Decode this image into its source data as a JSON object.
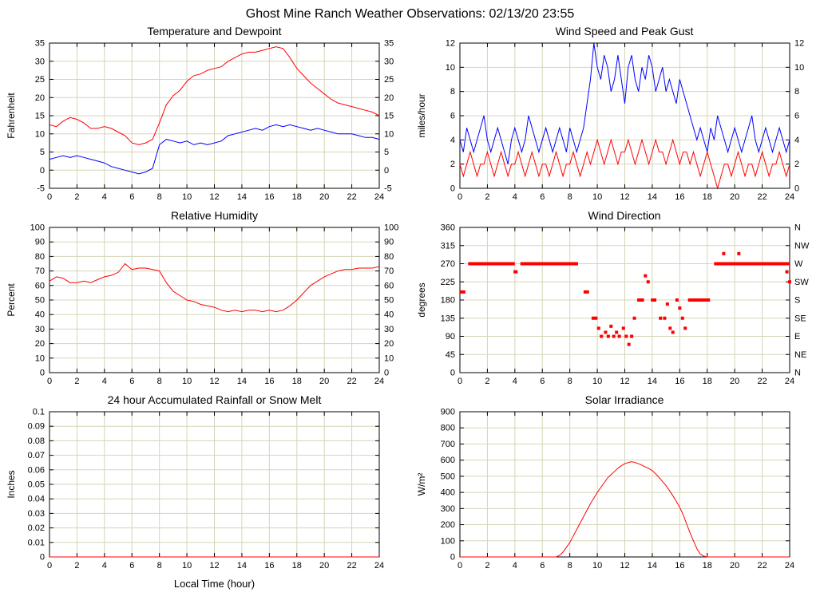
{
  "title": "Ghost Mine Ranch Weather Observations: 02/13/20 23:55",
  "colors": {
    "red": "#ff0000",
    "blue": "#0000ff",
    "frame": "#000000"
  },
  "chart_common": {
    "xmin": 0,
    "xmax": 24,
    "xticks": [
      0,
      2,
      4,
      6,
      8,
      10,
      12,
      14,
      16,
      18,
      20,
      22,
      24
    ],
    "grid_color": "#d5d5b8"
  },
  "chart_data": [
    {
      "type": "line",
      "title": "Temperature and Dewpoint",
      "ylabel": "Fahrenheit",
      "ymin": -5,
      "ymax": 35,
      "mirror": true,
      "margins": {
        "l": 58,
        "r": 34,
        "t": 6,
        "b": 24
      },
      "yticks": [
        [
          -5,
          "-5"
        ],
        [
          0,
          "0"
        ],
        [
          5,
          "5"
        ],
        [
          10,
          "10"
        ],
        [
          15,
          "15"
        ],
        [
          20,
          "20"
        ],
        [
          25,
          "25"
        ],
        [
          30,
          "30"
        ],
        [
          35,
          "35"
        ]
      ],
      "series": [
        {
          "name": "temperature",
          "color": "#ff0000",
          "x0": 0,
          "dx": 0.5,
          "y": [
            12.5,
            12,
            13.5,
            14.5,
            14,
            13,
            11.5,
            11.5,
            12,
            11.5,
            10.5,
            9.5,
            7.5,
            7,
            7.5,
            8.5,
            13,
            18,
            20.5,
            22,
            24.5,
            26,
            26.5,
            27.5,
            28,
            28.5,
            30,
            31,
            32,
            32.5,
            32.5,
            33,
            33.5,
            34,
            33.5,
            31,
            28,
            26,
            24,
            22.5,
            21,
            19.5,
            18.5,
            18,
            17.5,
            17,
            16.5,
            16,
            15
          ]
        },
        {
          "name": "dewpoint",
          "color": "#0000ff",
          "x0": 0,
          "dx": 0.5,
          "y": [
            3,
            3.5,
            4,
            3.5,
            4,
            3.5,
            3,
            2.5,
            2,
            1,
            0.5,
            0,
            -0.5,
            -1,
            -0.5,
            0.5,
            7,
            8.5,
            8,
            7.5,
            8,
            7,
            7.5,
            7,
            7.5,
            8,
            9.5,
            10,
            10.5,
            11,
            11.5,
            11,
            12,
            12.5,
            12,
            12.5,
            12,
            11.5,
            11,
            11.5,
            11,
            10.5,
            10,
            10,
            10,
            9.5,
            9,
            9,
            8.5
          ]
        }
      ]
    },
    {
      "type": "line",
      "title": "Wind Speed and Peak Gust",
      "ylabel": "miles/hour",
      "ymin": 0,
      "ymax": 12,
      "mirror": true,
      "margins": {
        "l": 58,
        "r": 34,
        "t": 6,
        "b": 24
      },
      "yticks": [
        [
          0,
          "0"
        ],
        [
          2,
          "2"
        ],
        [
          4,
          "4"
        ],
        [
          6,
          "6"
        ],
        [
          8,
          "8"
        ],
        [
          10,
          "10"
        ],
        [
          12,
          "12"
        ]
      ],
      "series": [
        {
          "name": "peak-gust",
          "color": "#0000ff",
          "x0": 0,
          "dx": 0.25,
          "y": [
            4,
            3,
            5,
            4,
            3,
            4,
            5,
            6,
            4,
            3,
            4,
            5,
            4,
            3,
            2,
            4,
            5,
            4,
            3,
            4,
            6,
            5,
            4,
            3,
            4,
            5,
            4,
            3,
            4,
            5,
            4,
            3,
            5,
            4,
            3,
            4,
            5,
            7,
            9,
            12,
            10,
            9,
            11,
            10,
            8,
            9,
            11,
            9,
            7,
            10,
            11,
            9,
            8,
            10,
            9,
            11,
            10,
            8,
            9,
            10,
            8,
            9,
            8,
            7,
            9,
            8,
            7,
            6,
            5,
            4,
            5,
            4,
            3,
            5,
            4,
            6,
            5,
            4,
            3,
            4,
            5,
            4,
            3,
            4,
            5,
            6,
            4,
            3,
            4,
            5,
            4,
            3,
            4,
            5,
            4,
            3,
            4
          ]
        },
        {
          "name": "wind-speed",
          "color": "#ff0000",
          "x0": 0,
          "dx": 0.25,
          "y": [
            2,
            1,
            2,
            3,
            2,
            1,
            2,
            2,
            3,
            2,
            1,
            2,
            3,
            2,
            1,
            2,
            2,
            3,
            2,
            1,
            2,
            3,
            2,
            1,
            2,
            2,
            1,
            2,
            3,
            2,
            1,
            2,
            2,
            3,
            2,
            1,
            2,
            3,
            2,
            3,
            4,
            3,
            2,
            3,
            4,
            3,
            2,
            3,
            3,
            4,
            3,
            2,
            3,
            4,
            3,
            2,
            3,
            4,
            3,
            3,
            2,
            3,
            4,
            3,
            2,
            3,
            3,
            2,
            3,
            2,
            1,
            2,
            3,
            2,
            1,
            0,
            1,
            2,
            2,
            1,
            2,
            3,
            2,
            1,
            2,
            2,
            1,
            2,
            3,
            2,
            1,
            2,
            2,
            3,
            2,
            1,
            2
          ]
        }
      ]
    },
    {
      "type": "line",
      "title": "Relative Humidity",
      "ylabel": "Percent",
      "ymin": 0,
      "ymax": 100,
      "mirror": true,
      "margins": {
        "l": 58,
        "r": 34,
        "t": 6,
        "b": 24
      },
      "yticks": [
        [
          0,
          "0"
        ],
        [
          10,
          "10"
        ],
        [
          20,
          "20"
        ],
        [
          30,
          "30"
        ],
        [
          40,
          "40"
        ],
        [
          50,
          "50"
        ],
        [
          60,
          "60"
        ],
        [
          70,
          "70"
        ],
        [
          80,
          "80"
        ],
        [
          90,
          "90"
        ],
        [
          100,
          "100"
        ]
      ],
      "series": [
        {
          "name": "relative-humidity",
          "color": "#ff0000",
          "x0": 0,
          "dx": 0.5,
          "y": [
            63,
            66,
            65,
            62,
            62,
            63,
            62,
            64,
            66,
            67,
            69,
            75,
            71,
            72,
            72,
            71,
            70,
            62,
            56,
            53,
            50,
            49,
            47,
            46,
            45,
            43,
            42,
            43,
            42,
            43,
            43,
            42,
            43,
            42,
            43,
            46,
            50,
            55,
            60,
            63,
            66,
            68,
            70,
            71,
            71,
            72,
            72,
            72,
            73
          ]
        }
      ]
    },
    {
      "type": "scatter",
      "title": "Wind Direction",
      "ylabel": "degrees",
      "ymin": 0,
      "ymax": 360,
      "mirror": false,
      "margins": {
        "l": 58,
        "r": 34,
        "t": 6,
        "b": 24
      },
      "yticks": [
        [
          0,
          "0"
        ],
        [
          45,
          "45"
        ],
        [
          90,
          "90"
        ],
        [
          135,
          "135"
        ],
        [
          180,
          "180"
        ],
        [
          225,
          "225"
        ],
        [
          270,
          "270"
        ],
        [
          315,
          "315"
        ],
        [
          360,
          "360"
        ]
      ],
      "right_labels": [
        "N",
        "NE",
        "E",
        "SE",
        "S",
        "SW",
        "W",
        "NW",
        "N"
      ],
      "mark_color": "#ff0000",
      "runs": [
        [
          0.0,
          0.4,
          200
        ],
        [
          0.6,
          4.0,
          270
        ],
        [
          3.9,
          4.2,
          250
        ],
        [
          4.4,
          8.6,
          270
        ],
        [
          9.0,
          9.4,
          200
        ],
        [
          12.9,
          13.4,
          180
        ],
        [
          13.9,
          14.3,
          180
        ],
        [
          16.6,
          18.2,
          180
        ],
        [
          18.5,
          24,
          270
        ]
      ],
      "dots": [
        [
          9.7,
          135
        ],
        [
          9.9,
          135
        ],
        [
          10.1,
          110
        ],
        [
          10.3,
          90
        ],
        [
          10.6,
          100
        ],
        [
          10.8,
          90
        ],
        [
          11.0,
          115
        ],
        [
          11.2,
          90
        ],
        [
          11.4,
          100
        ],
        [
          11.6,
          90
        ],
        [
          11.9,
          110
        ],
        [
          12.1,
          90
        ],
        [
          12.3,
          70
        ],
        [
          12.5,
          90
        ],
        [
          12.7,
          135
        ],
        [
          13.5,
          240
        ],
        [
          13.7,
          225
        ],
        [
          14.6,
          135
        ],
        [
          14.9,
          135
        ],
        [
          15.1,
          170
        ],
        [
          15.3,
          110
        ],
        [
          15.5,
          100
        ],
        [
          15.8,
          180
        ],
        [
          16.0,
          160
        ],
        [
          16.2,
          135
        ],
        [
          16.4,
          110
        ],
        [
          19.2,
          295
        ],
        [
          20.3,
          295
        ],
        [
          23.8,
          250
        ],
        [
          24,
          225
        ]
      ]
    },
    {
      "type": "line",
      "title": "24 hour Accumulated Rainfall or Snow Melt",
      "ylabel": "Inches",
      "xlabel": "Local Time (hour)",
      "ymin": 0,
      "ymax": 0.1,
      "mirror": false,
      "margins": {
        "l": 58,
        "r": 34,
        "t": 6,
        "b": 44
      },
      "yticks": [
        [
          0,
          "0"
        ],
        [
          0.01,
          "0.01"
        ],
        [
          0.02,
          "0.02"
        ],
        [
          0.03,
          "0.03"
        ],
        [
          0.04,
          "0.04"
        ],
        [
          0.05,
          "0.05"
        ],
        [
          0.06,
          "0.06"
        ],
        [
          0.07,
          "0.07"
        ],
        [
          0.08,
          "0.08"
        ],
        [
          0.09,
          "0.09"
        ],
        [
          0.1,
          "0.1"
        ]
      ],
      "series": [
        {
          "name": "accumulated-rainfall",
          "color": "#ff0000",
          "x0": 0,
          "dx": 24,
          "y": [
            0,
            0
          ]
        }
      ]
    },
    {
      "type": "line",
      "title": "Solar Irradiance",
      "ylabel": "W/m²",
      "ymin": 0,
      "ymax": 900,
      "mirror": false,
      "margins": {
        "l": 58,
        "r": 34,
        "t": 6,
        "b": 24
      },
      "yticks": [
        [
          0,
          "0"
        ],
        [
          100,
          "100"
        ],
        [
          200,
          "200"
        ],
        [
          300,
          "300"
        ],
        [
          400,
          "400"
        ],
        [
          500,
          "500"
        ],
        [
          600,
          "600"
        ],
        [
          700,
          "700"
        ],
        [
          800,
          "800"
        ],
        [
          900,
          "900"
        ]
      ],
      "series": [
        {
          "name": "solar-irradiance",
          "color": "#ff0000",
          "x0": 0,
          "dx": 0.25,
          "y": [
            0,
            0,
            0,
            0,
            0,
            0,
            0,
            0,
            0,
            0,
            0,
            0,
            0,
            0,
            0,
            0,
            0,
            0,
            0,
            0,
            0,
            0,
            0,
            0,
            0,
            0,
            0,
            0,
            0,
            10,
            30,
            60,
            90,
            130,
            170,
            210,
            250,
            290,
            330,
            365,
            400,
            430,
            460,
            490,
            510,
            530,
            550,
            565,
            578,
            585,
            590,
            585,
            578,
            568,
            558,
            548,
            535,
            515,
            492,
            468,
            442,
            412,
            380,
            345,
            308,
            262,
            205,
            150,
            100,
            52,
            18,
            5,
            0,
            0,
            0,
            0,
            0,
            0,
            0,
            0,
            0,
            0,
            0,
            0,
            0,
            0,
            0,
            0,
            0,
            0,
            0,
            0,
            0,
            0,
            0,
            0,
            0
          ]
        }
      ]
    }
  ]
}
